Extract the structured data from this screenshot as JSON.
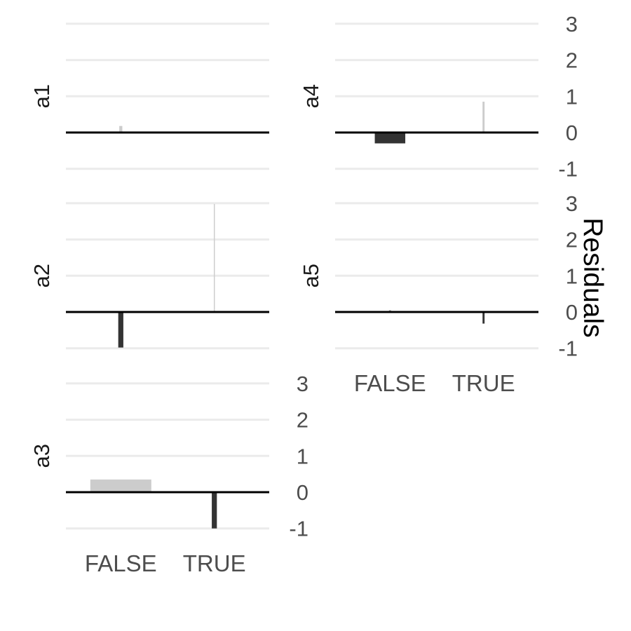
{
  "chart_data": {
    "type": "bar",
    "ylabel": "Residuals",
    "categories": [
      "FALSE",
      "TRUE"
    ],
    "ylim": [
      -1,
      3
    ],
    "yticks": [
      -1,
      0,
      1,
      2,
      3
    ],
    "grid": true,
    "colors": {
      "FALSE": "#333333",
      "TRUE": "#cccccc",
      "positive_false_a3": "#cccccc"
    },
    "panels": [
      {
        "name": "a1",
        "values": [
          0.18,
          0.0
        ],
        "bar_width": [
          0.03,
          0.03
        ],
        "color": [
          "#cccccc",
          "#cccccc"
        ]
      },
      {
        "name": "a4",
        "values": [
          -0.3,
          0.85
        ],
        "bar_width": [
          0.3,
          0.02
        ],
        "color": [
          "#333333",
          "#cccccc"
        ]
      },
      {
        "name": "a2",
        "values": [
          -0.98,
          2.98
        ],
        "bar_width": [
          0.05,
          0.01
        ],
        "color": [
          "#333333",
          "#cccccc"
        ]
      },
      {
        "name": "a5",
        "values": [
          0.05,
          -0.32
        ],
        "bar_width": [
          0.02,
          0.02
        ],
        "color": [
          "#999999",
          "#333333"
        ]
      },
      {
        "name": "a3",
        "values": [
          0.35,
          -1.0
        ],
        "bar_width": [
          0.6,
          0.05
        ],
        "color": [
          "#cccccc",
          "#333333"
        ]
      }
    ]
  }
}
